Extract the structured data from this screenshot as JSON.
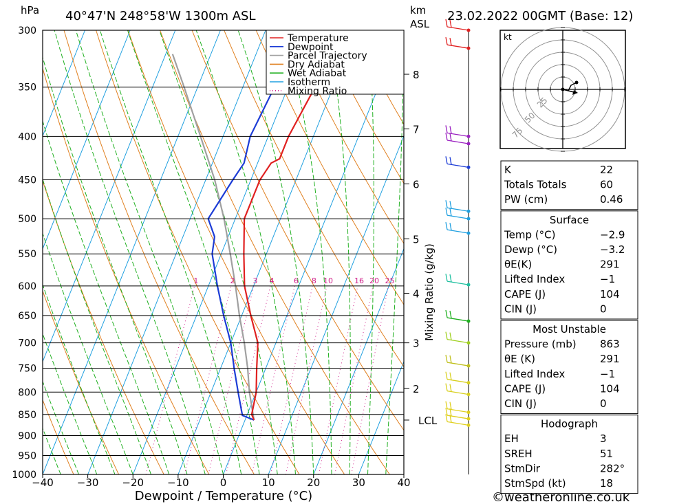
{
  "header": {
    "p_unit": "hPa",
    "location": "40°47'N  248°58'W  1300m  ASL",
    "km_label": "km",
    "asl_label": "ASL",
    "run": "23.02.2022  00GMT  (Base: 12)"
  },
  "axes": {
    "xlabel": "Dewpoint / Temperature (°C)",
    "x_ticks": [
      -40,
      -30,
      -20,
      -10,
      0,
      10,
      20,
      30,
      40
    ],
    "x_tick_labels": [
      "−40",
      "−30",
      "−20",
      "−10",
      "0",
      "10",
      "20",
      "30",
      "40"
    ],
    "p_levels": [
      300,
      350,
      400,
      450,
      500,
      550,
      600,
      650,
      700,
      750,
      800,
      850,
      900,
      950,
      1000
    ],
    "km_ticks": [
      {
        "label": "8",
        "p": 338
      },
      {
        "label": "7",
        "p": 392
      },
      {
        "label": "6",
        "p": 455
      },
      {
        "label": "5",
        "p": 528
      },
      {
        "label": "4",
        "p": 612
      },
      {
        "label": "3",
        "p": 700
      },
      {
        "label": "2",
        "p": 792
      },
      {
        "label": "LCL",
        "p": 863
      }
    ],
    "mixing_ratio_axis_label": "Mixing Ratio (g/kg)",
    "mixing_ratio_labels": [
      "1",
      "2",
      "3",
      "4",
      "6",
      "8",
      "10",
      "16",
      "20",
      "25"
    ]
  },
  "legend": [
    {
      "label": "Temperature",
      "color": "#e02020",
      "style": "solid"
    },
    {
      "label": "Dewpoint",
      "color": "#1c3cd6",
      "style": "solid"
    },
    {
      "label": "Parcel Trajectory",
      "color": "#a0a0a0",
      "style": "solid"
    },
    {
      "label": "Dry Adiabat",
      "color": "#e08020",
      "style": "solid"
    },
    {
      "label": "Wet Adiabat",
      "color": "#20b020",
      "style": "solid"
    },
    {
      "label": "Isotherm",
      "color": "#20a0e0",
      "style": "solid"
    },
    {
      "label": "Mixing Ratio",
      "color": "#d0208a",
      "style": "dotted"
    }
  ],
  "chart_data": {
    "type": "line",
    "title": "40°47'N  248°58'W  1300m  ASL",
    "xlabel": "Dewpoint / Temperature (°C)",
    "ylabel": "hPa",
    "xlim": [
      -40,
      40
    ],
    "ylim": [
      1000,
      300
    ],
    "y_scale": "log",
    "series": [
      {
        "name": "Temperature",
        "points": [
          [
            300,
            -8
          ],
          [
            320,
            -9.5
          ],
          [
            350,
            -14
          ],
          [
            400,
            -15.5
          ],
          [
            425,
            -15.5
          ],
          [
            430,
            -17
          ],
          [
            450,
            -18
          ],
          [
            500,
            -18
          ],
          [
            550,
            -15
          ],
          [
            600,
            -12
          ],
          [
            650,
            -8
          ],
          [
            700,
            -4
          ],
          [
            750,
            -2
          ],
          [
            800,
            0
          ],
          [
            850,
            1
          ],
          [
            863,
            2
          ]
        ]
      },
      {
        "name": "Dewpoint",
        "points": [
          [
            300,
            -22
          ],
          [
            350,
            -23
          ],
          [
            400,
            -24
          ],
          [
            430,
            -23
          ],
          [
            450,
            -24
          ],
          [
            500,
            -26
          ],
          [
            525,
            -23
          ],
          [
            550,
            -22
          ],
          [
            600,
            -18
          ],
          [
            650,
            -14
          ],
          [
            700,
            -10
          ],
          [
            750,
            -7
          ],
          [
            800,
            -4
          ],
          [
            852,
            -1
          ],
          [
            863,
            2
          ]
        ]
      },
      {
        "name": "Parcel Trajectory",
        "points": [
          [
            863,
            2
          ],
          [
            800,
            -1.5
          ],
          [
            750,
            -4
          ],
          [
            700,
            -7
          ],
          [
            650,
            -10.5
          ],
          [
            600,
            -14
          ],
          [
            550,
            -18
          ],
          [
            500,
            -22.5
          ],
          [
            450,
            -28
          ],
          [
            400,
            -35
          ],
          [
            350,
            -43
          ],
          [
            320,
            -48.5
          ]
        ]
      }
    ],
    "wind_barbs": [
      {
        "p": 300,
        "color": "#e02020"
      },
      {
        "p": 315,
        "color": "#e02020"
      },
      {
        "p": 400,
        "color": "#9a20c0"
      },
      {
        "p": 408,
        "color": "#9a20c0"
      },
      {
        "p": 435,
        "color": "#1c3cd6"
      },
      {
        "p": 490,
        "color": "#20a0e0"
      },
      {
        "p": 500,
        "color": "#20a0e0"
      },
      {
        "p": 520,
        "color": "#20a0e0"
      },
      {
        "p": 598,
        "color": "#20c0a0"
      },
      {
        "p": 660,
        "color": "#20b020"
      },
      {
        "p": 700,
        "color": "#a0d020"
      },
      {
        "p": 745,
        "color": "#c0c020"
      },
      {
        "p": 780,
        "color": "#d8d020"
      },
      {
        "p": 805,
        "color": "#d8d020"
      },
      {
        "p": 845,
        "color": "#e0d020"
      },
      {
        "p": 860,
        "color": "#e0d020"
      },
      {
        "p": 875,
        "color": "#e0d020"
      }
    ]
  },
  "hodograph": {
    "unit": "kt",
    "rings": [
      "25",
      "50",
      "75"
    ]
  },
  "indices_top": [
    {
      "k": "K",
      "v": "22"
    },
    {
      "k": "Totals Totals",
      "v": "60"
    },
    {
      "k": "PW (cm)",
      "v": "0.46"
    }
  ],
  "surface": {
    "title": "Surface",
    "rows": [
      {
        "k": "Temp (°C)",
        "v": "−2.9"
      },
      {
        "k": "Dewp (°C)",
        "v": "−3.2"
      },
      {
        "k": "θE(K)",
        "v": "291"
      },
      {
        "k": "Lifted Index",
        "v": "−1"
      },
      {
        "k": "CAPE (J)",
        "v": "104"
      },
      {
        "k": "CIN (J)",
        "v": "0"
      }
    ]
  },
  "most_unstable": {
    "title": "Most Unstable",
    "rows": [
      {
        "k": "Pressure (mb)",
        "v": "863"
      },
      {
        "k": "θE (K)",
        "v": "291"
      },
      {
        "k": "Lifted Index",
        "v": "−1"
      },
      {
        "k": "CAPE (J)",
        "v": "104"
      },
      {
        "k": "CIN (J)",
        "v": "0"
      }
    ]
  },
  "hodo_table": {
    "title": "Hodograph",
    "rows": [
      {
        "k": "EH",
        "v": "3"
      },
      {
        "k": "SREH",
        "v": "51"
      },
      {
        "k": "StmDir",
        "v": "282°"
      },
      {
        "k": "StmSpd (kt)",
        "v": "18"
      }
    ]
  },
  "footer": {
    "copyright": "©weatheronline.co.uk"
  }
}
